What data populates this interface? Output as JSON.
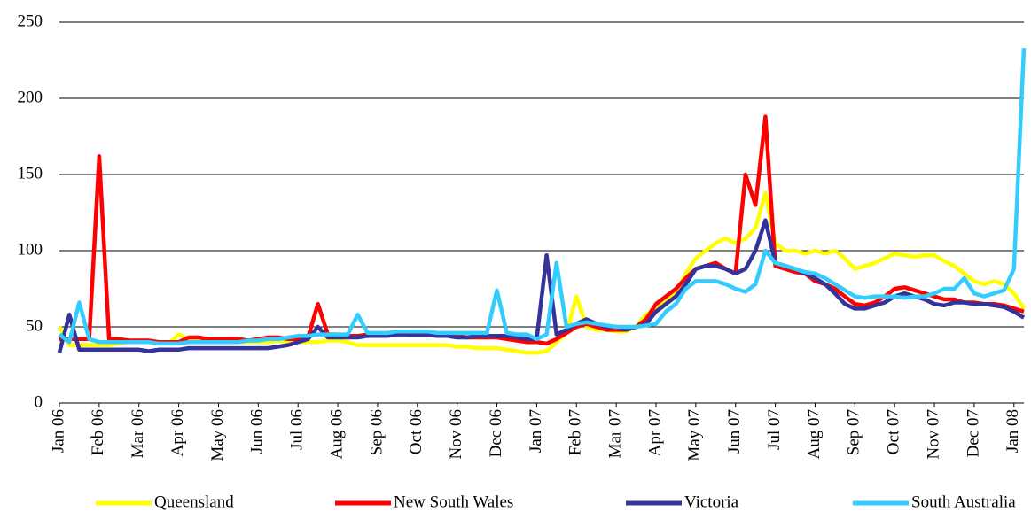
{
  "chart_data": {
    "type": "line",
    "categories": [
      "Jan 06",
      null,
      null,
      null,
      "Feb 06",
      null,
      null,
      null,
      "Mar 06",
      null,
      null,
      null,
      "Apr 06",
      null,
      null,
      null,
      "May 06",
      null,
      null,
      null,
      "Jun 06",
      null,
      null,
      null,
      "Jul 06",
      null,
      null,
      null,
      "Aug 06",
      null,
      null,
      null,
      "Sep 06",
      null,
      null,
      null,
      "Oct 06",
      null,
      null,
      null,
      "Nov 06",
      null,
      null,
      null,
      "Dec 06",
      null,
      null,
      null,
      "Jan 07",
      null,
      null,
      null,
      "Feb 07",
      null,
      null,
      null,
      "Mar 07",
      null,
      null,
      null,
      "Apr 07",
      null,
      null,
      null,
      "May 07",
      null,
      null,
      null,
      "Jun 07",
      null,
      null,
      null,
      "Jul 07",
      null,
      null,
      null,
      "Aug 07",
      null,
      null,
      null,
      "Sep 07",
      null,
      null,
      null,
      "Oct 07",
      null,
      null,
      null,
      "Nov 07",
      null,
      null,
      null,
      "Dec 07",
      null,
      null,
      null,
      "Jan 08",
      null
    ],
    "series": [
      {
        "name": "Queensland",
        "color": "#ffff00",
        "values": [
          50,
          38,
          38,
          38,
          38,
          38,
          39,
          40,
          40,
          40,
          40,
          39,
          45,
          42,
          40,
          40,
          40,
          40,
          40,
          40,
          40,
          40,
          41,
          40,
          40,
          40,
          40,
          41,
          41,
          40,
          38,
          38,
          38,
          38,
          38,
          38,
          38,
          38,
          38,
          38,
          37,
          37,
          36,
          36,
          36,
          35,
          34,
          33,
          33,
          34,
          40,
          46,
          70,
          50,
          48,
          48,
          47,
          47,
          50,
          58,
          62,
          68,
          72,
          85,
          95,
          100,
          105,
          108,
          105,
          108,
          115,
          138,
          105,
          100,
          100,
          98,
          100,
          98,
          100,
          95,
          88,
          90,
          92,
          95,
          98,
          97,
          96,
          97,
          97,
          93,
          90,
          85,
          80,
          78,
          80,
          78,
          72,
          62
        ]
      },
      {
        "name": "New South Wales",
        "color": "#ff0000",
        "values": [
          42,
          42,
          42,
          42,
          162,
          42,
          42,
          41,
          41,
          41,
          40,
          40,
          40,
          43,
          43,
          42,
          42,
          42,
          42,
          41,
          42,
          43,
          43,
          42,
          42,
          43,
          65,
          45,
          45,
          44,
          44,
          45,
          45,
          46,
          46,
          45,
          45,
          45,
          44,
          44,
          44,
          43,
          43,
          43,
          43,
          42,
          41,
          40,
          40,
          39,
          42,
          46,
          50,
          52,
          50,
          48,
          48,
          48,
          50,
          55,
          65,
          70,
          75,
          82,
          88,
          90,
          92,
          88,
          85,
          150,
          130,
          188,
          90,
          88,
          86,
          85,
          80,
          78,
          75,
          70,
          65,
          64,
          66,
          70,
          75,
          76,
          74,
          72,
          70,
          68,
          68,
          66,
          66,
          65,
          65,
          64,
          62,
          60
        ]
      },
      {
        "name": "Victoria",
        "color": "#333399",
        "values": [
          33,
          58,
          35,
          35,
          35,
          35,
          35,
          35,
          35,
          34,
          35,
          35,
          35,
          36,
          36,
          36,
          36,
          36,
          36,
          36,
          36,
          36,
          37,
          38,
          40,
          42,
          50,
          43,
          43,
          43,
          43,
          44,
          44,
          44,
          45,
          45,
          45,
          45,
          44,
          44,
          43,
          43,
          44,
          44,
          44,
          44,
          43,
          42,
          42,
          97,
          45,
          48,
          52,
          55,
          52,
          50,
          50,
          48,
          50,
          52,
          60,
          65,
          70,
          78,
          88,
          90,
          90,
          88,
          85,
          88,
          100,
          120,
          92,
          90,
          88,
          85,
          82,
          78,
          72,
          65,
          62,
          62,
          64,
          66,
          70,
          72,
          70,
          68,
          65,
          64,
          66,
          66,
          65,
          65,
          64,
          63,
          60,
          56
        ]
      },
      {
        "name": "South Australia",
        "color": "#33ccff",
        "values": [
          45,
          40,
          66,
          42,
          40,
          40,
          40,
          40,
          40,
          40,
          39,
          39,
          39,
          40,
          40,
          40,
          40,
          40,
          40,
          41,
          41,
          42,
          42,
          43,
          44,
          44,
          45,
          45,
          45,
          45,
          58,
          46,
          46,
          46,
          47,
          47,
          47,
          47,
          46,
          46,
          46,
          46,
          46,
          46,
          74,
          46,
          45,
          45,
          42,
          45,
          92,
          50,
          52,
          53,
          52,
          51,
          50,
          50,
          50,
          51,
          52,
          60,
          65,
          75,
          80,
          80,
          80,
          78,
          75,
          73,
          78,
          100,
          92,
          90,
          88,
          86,
          85,
          82,
          78,
          74,
          70,
          69,
          70,
          70,
          70,
          69,
          70,
          70,
          72,
          75,
          75,
          82,
          72,
          70,
          72,
          74,
          88,
          233
        ]
      }
    ],
    "ylim": [
      0,
      250
    ],
    "yticks": [
      0,
      50,
      100,
      150,
      200,
      250
    ],
    "grid": true,
    "legend": "bottom"
  }
}
